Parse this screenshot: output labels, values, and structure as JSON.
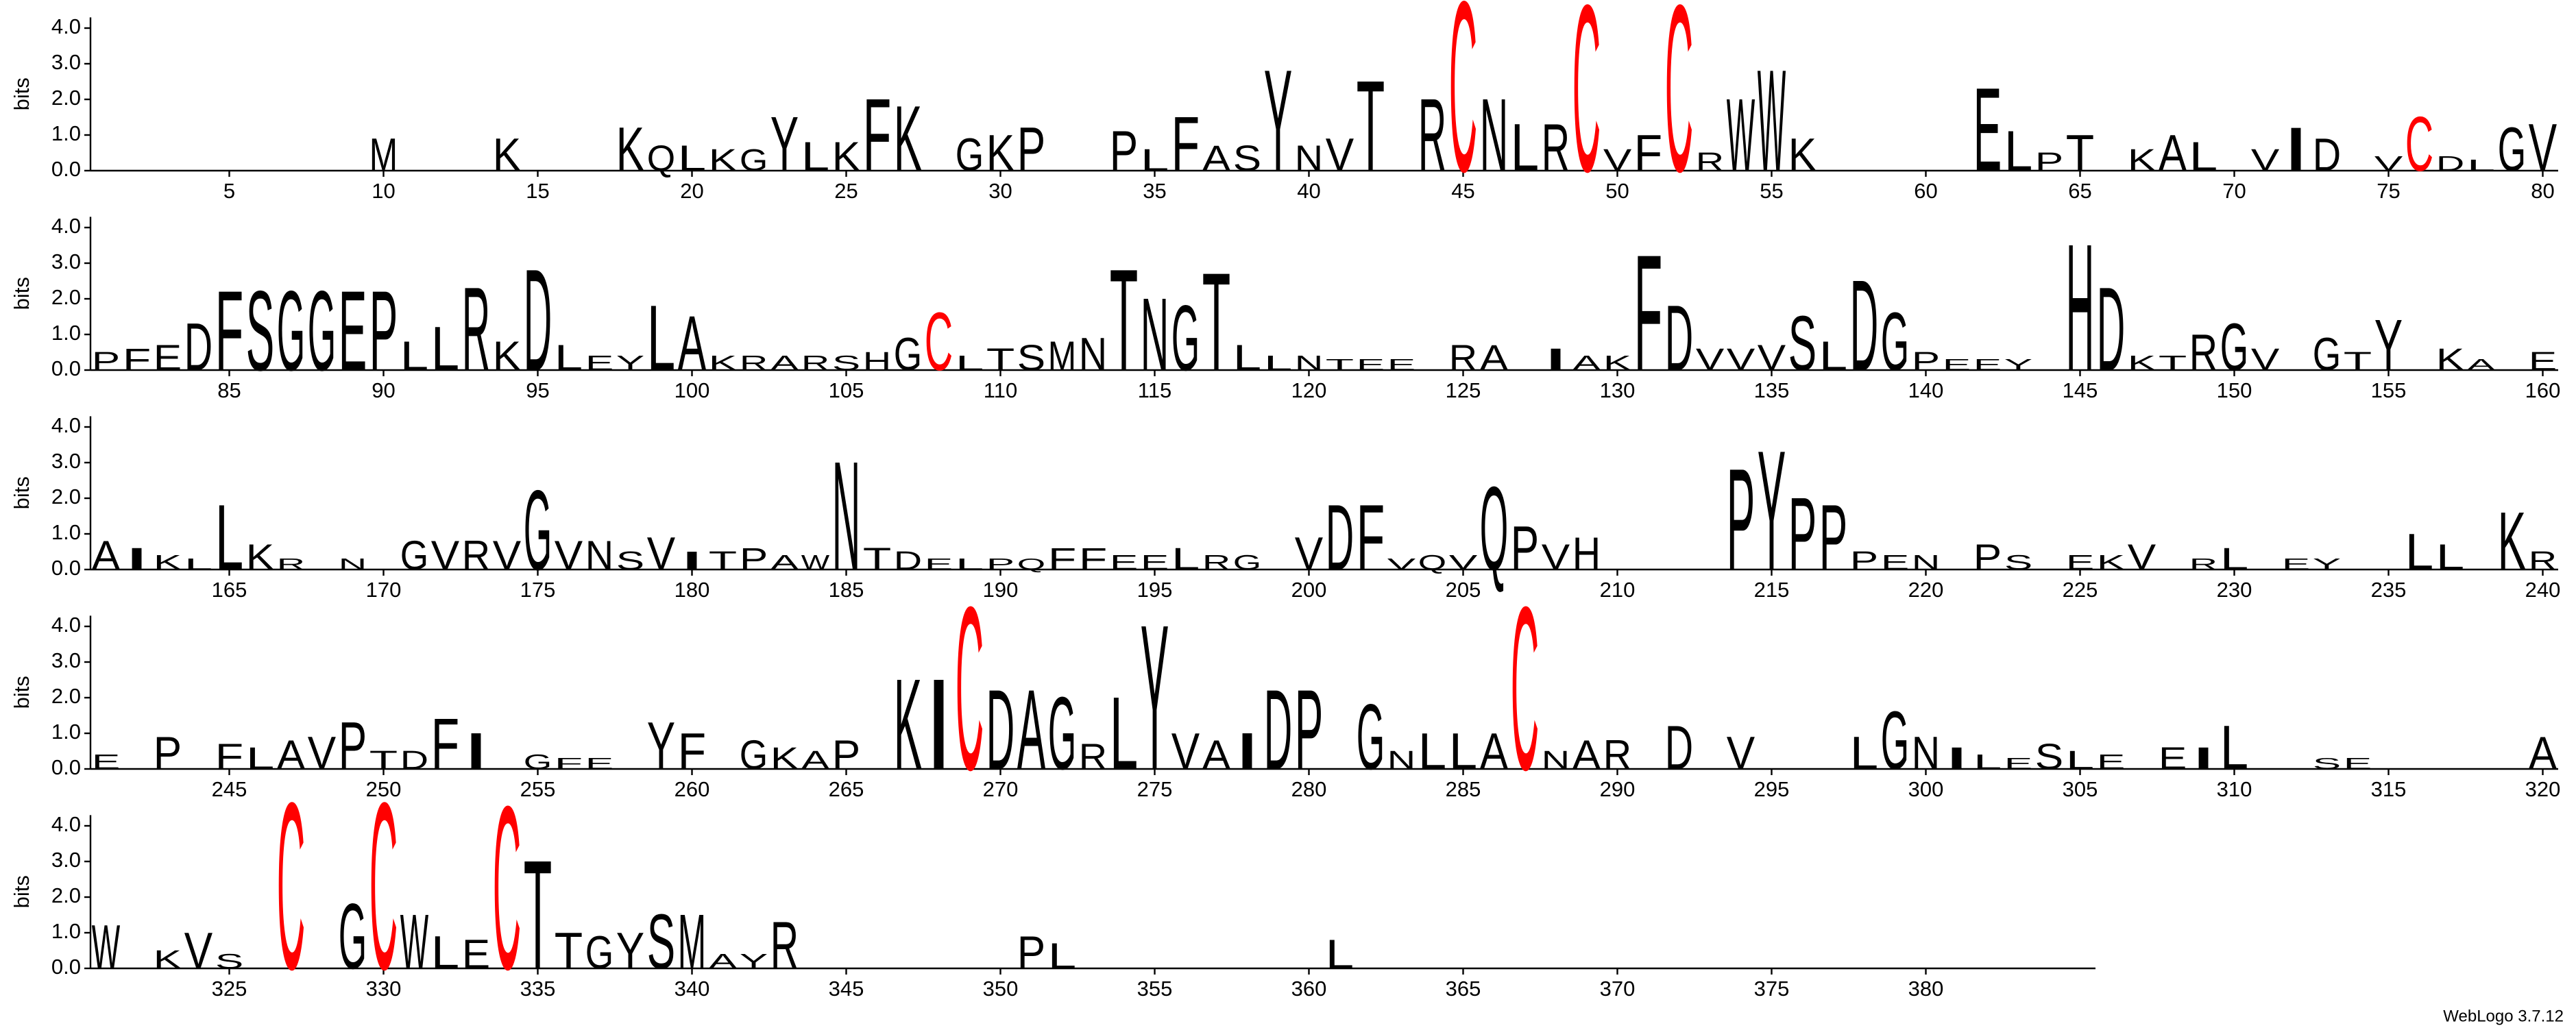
{
  "chart_data": [
    {
      "type": "logo",
      "ylabel": "bits",
      "ylim": [
        0,
        4.3
      ],
      "yticks": [
        {
          "value": 0,
          "label": "0.0"
        },
        {
          "value": 1,
          "label": "1.0"
        },
        {
          "value": 2,
          "label": "2.0"
        },
        {
          "value": 3,
          "label": "3.0"
        },
        {
          "value": 4,
          "label": "4.0"
        }
      ],
      "xlim": [
        0.5,
        80.5
      ],
      "xticks": [
        5,
        10,
        15,
        20,
        25,
        30,
        35,
        40,
        45,
        50,
        55,
        60,
        65,
        70,
        75,
        80
      ],
      "color": "#000000",
      "letter_colors": {
        "C": "#ff0000"
      },
      "x": [
        10,
        14,
        18,
        19,
        20,
        21,
        22,
        23,
        24,
        25,
        26,
        27,
        29,
        30,
        31,
        34,
        35,
        36,
        37,
        38,
        39,
        40,
        41,
        42,
        44,
        45,
        46,
        47,
        48,
        49,
        50,
        51,
        52,
        53,
        54,
        55,
        56,
        62,
        63,
        64,
        65,
        67,
        68,
        69,
        71,
        72,
        73,
        75,
        76,
        77,
        78,
        79,
        80
      ],
      "letters": [
        "M",
        "K",
        "K",
        "Q",
        "L",
        "K",
        "G",
        "Y",
        "L",
        "K",
        "F",
        "K",
        "G",
        "K",
        "P",
        "P",
        "L",
        "F",
        "A",
        "S",
        "Y",
        "N",
        "V",
        "T",
        "R",
        "C",
        "N",
        "L",
        "R",
        "C",
        "V",
        "F",
        "C",
        "R",
        "W",
        "W",
        "K",
        "E",
        "L",
        "P",
        "T",
        "K",
        "A",
        "L",
        "V",
        "I",
        "D",
        "V",
        "C",
        "D",
        "L",
        "G",
        "V"
      ],
      "values": [
        0.9,
        0.9,
        1.2,
        0.7,
        0.7,
        0.6,
        0.6,
        1.5,
        0.8,
        0.8,
        2.0,
        1.8,
        0.9,
        1.0,
        1.2,
        1.1,
        0.6,
        1.5,
        0.7,
        0.7,
        2.8,
        0.7,
        0.9,
        2.5,
        2.0,
        4.7,
        2.0,
        1.3,
        1.3,
        4.6,
        0.6,
        1.0,
        4.6,
        0.5,
        2.0,
        2.8,
        0.9,
        2.3,
        1.1,
        0.5,
        1.0,
        0.6,
        1.0,
        0.8,
        0.6,
        1.2,
        0.9,
        0.4,
        1.5,
        0.4,
        0.3,
        1.2,
        1.3
      ]
    },
    {
      "type": "logo",
      "ylabel": "bits",
      "ylim": [
        0,
        4.3
      ],
      "yticks": [
        {
          "value": 0,
          "label": "0.0"
        },
        {
          "value": 1,
          "label": "1.0"
        },
        {
          "value": 2,
          "label": "2.0"
        },
        {
          "value": 3,
          "label": "3.0"
        },
        {
          "value": 4,
          "label": "4.0"
        }
      ],
      "xlim": [
        80.5,
        160.5
      ],
      "xticks": [
        85,
        90,
        95,
        100,
        105,
        110,
        115,
        120,
        125,
        130,
        135,
        140,
        145,
        150,
        155,
        160
      ],
      "color": "#000000",
      "letter_colors": {
        "C": "#ff0000"
      },
      "x": [
        81,
        82,
        83,
        84,
        85,
        86,
        87,
        88,
        89,
        90,
        91,
        92,
        93,
        94,
        95,
        96,
        97,
        98,
        99,
        100,
        101,
        102,
        103,
        104,
        105,
        106,
        107,
        108,
        109,
        110,
        111,
        112,
        113,
        114,
        115,
        116,
        117,
        118,
        119,
        120,
        121,
        122,
        123,
        125,
        126,
        128,
        129,
        130,
        131,
        132,
        133,
        134,
        135,
        136,
        137,
        138,
        139,
        140,
        141,
        142,
        143,
        145,
        146,
        147,
        148,
        149,
        150,
        151,
        153,
        154,
        155,
        157,
        158,
        160
      ],
      "letters": [
        "P",
        "F",
        "E",
        "D",
        "F",
        "S",
        "G",
        "G",
        "E",
        "P",
        "L",
        "L",
        "R",
        "K",
        "D",
        "L",
        "E",
        "Y",
        "L",
        "A",
        "K",
        "R",
        "A",
        "R",
        "S",
        "H",
        "G",
        "C",
        "L",
        "T",
        "S",
        "M",
        "N",
        "T",
        "N",
        "G",
        "T",
        "L",
        "L",
        "N",
        "T",
        "E",
        "E",
        "R",
        "A",
        "I",
        "A",
        "K",
        "F",
        "D",
        "V",
        "V",
        "V",
        "S",
        "L",
        "D",
        "G",
        "P",
        "E",
        "E",
        "Y",
        "H",
        "D",
        "K",
        "T",
        "R",
        "G",
        "V",
        "G",
        "T",
        "Y",
        "K",
        "A",
        "E"
      ],
      "values": [
        0.5,
        0.6,
        0.7,
        1.3,
        2.2,
        2.2,
        2.2,
        2.2,
        2.2,
        2.2,
        0.8,
        1.2,
        2.3,
        0.8,
        2.8,
        0.7,
        0.4,
        0.4,
        1.8,
        1.5,
        0.4,
        0.4,
        0.4,
        0.4,
        0.4,
        0.5,
        0.9,
        1.6,
        0.4,
        0.6,
        0.7,
        0.8,
        0.9,
        2.8,
        2.0,
        1.8,
        2.7,
        0.7,
        0.4,
        0.4,
        0.3,
        0.3,
        0.3,
        0.7,
        0.7,
        0.6,
        0.4,
        0.4,
        3.2,
        1.8,
        0.6,
        0.6,
        0.7,
        1.5,
        0.8,
        2.5,
        1.6,
        0.5,
        0.3,
        0.3,
        0.3,
        3.5,
        2.3,
        0.4,
        0.4,
        1.0,
        1.3,
        0.6,
        0.9,
        0.5,
        1.4,
        0.6,
        0.3,
        0.5
      ]
    },
    {
      "type": "logo",
      "ylabel": "bits",
      "ylim": [
        0,
        4.3
      ],
      "yticks": [
        {
          "value": 0,
          "label": "0.0"
        },
        {
          "value": 1,
          "label": "1.0"
        },
        {
          "value": 2,
          "label": "2.0"
        },
        {
          "value": 3,
          "label": "3.0"
        },
        {
          "value": 4,
          "label": "4.0"
        }
      ],
      "xlim": [
        160.5,
        240.5
      ],
      "xticks": [
        165,
        170,
        175,
        180,
        185,
        190,
        195,
        200,
        205,
        210,
        215,
        220,
        225,
        230,
        235,
        240
      ],
      "color": "#000000",
      "letter_colors": {
        "C": "#ff0000"
      },
      "x": [
        161,
        162,
        163,
        164,
        165,
        166,
        167,
        169,
        171,
        172,
        173,
        174,
        175,
        176,
        177,
        178,
        179,
        180,
        181,
        182,
        183,
        184,
        185,
        186,
        187,
        188,
        189,
        190,
        191,
        192,
        193,
        194,
        195,
        196,
        197,
        198,
        200,
        201,
        202,
        203,
        204,
        205,
        206,
        207,
        208,
        209,
        214,
        215,
        216,
        217,
        218,
        219,
        220,
        222,
        223,
        225,
        226,
        227,
        229,
        230,
        232,
        233,
        236,
        237,
        239,
        240
      ],
      "letters": [
        "A",
        "I",
        "K",
        "L",
        "L",
        "K",
        "R",
        "N",
        "G",
        "V",
        "R",
        "V",
        "G",
        "V",
        "N",
        "S",
        "V",
        "I",
        "T",
        "P",
        "A",
        "W",
        "N",
        "T",
        "D",
        "E",
        "L",
        "P",
        "Q",
        "F",
        "F",
        "E",
        "E",
        "L",
        "R",
        "G",
        "V",
        "D",
        "F",
        "V",
        "Q",
        "V",
        "Q",
        "P",
        "V",
        "H",
        "P",
        "Y",
        "P",
        "P",
        "P",
        "E",
        "N",
        "P",
        "S",
        "E",
        "K",
        "V",
        "R",
        "L",
        "E",
        "Y",
        "L",
        "L",
        "K",
        "R"
      ],
      "values": [
        0.8,
        0.6,
        0.4,
        0.3,
        1.8,
        0.7,
        0.3,
        0.3,
        0.8,
        0.8,
        0.8,
        0.8,
        2.2,
        0.8,
        0.8,
        0.5,
        0.9,
        0.5,
        0.5,
        0.6,
        0.4,
        0.4,
        3.0,
        0.6,
        0.5,
        0.3,
        0.3,
        0.3,
        0.3,
        0.6,
        0.6,
        0.4,
        0.4,
        0.6,
        0.4,
        0.4,
        0.9,
        1.8,
        1.8,
        0.3,
        0.4,
        0.4,
        2.3,
        1.2,
        0.7,
        0.9,
        2.8,
        3.3,
        2.0,
        1.8,
        0.5,
        0.4,
        0.4,
        0.7,
        0.4,
        0.4,
        0.4,
        0.7,
        0.3,
        0.6,
        0.3,
        0.3,
        1.0,
        0.7,
        1.6,
        0.5
      ]
    },
    {
      "type": "logo",
      "ylabel": "bits",
      "ylim": [
        0,
        4.3
      ],
      "yticks": [
        {
          "value": 0,
          "label": "0.0"
        },
        {
          "value": 1,
          "label": "1.0"
        },
        {
          "value": 2,
          "label": "2.0"
        },
        {
          "value": 3,
          "label": "3.0"
        },
        {
          "value": 4,
          "label": "4.0"
        }
      ],
      "xlim": [
        240.5,
        320.5
      ],
      "xticks": [
        245,
        250,
        255,
        260,
        265,
        270,
        275,
        280,
        285,
        290,
        295,
        300,
        305,
        310,
        315,
        320
      ],
      "color": "#000000",
      "letter_colors": {
        "C": "#ff0000"
      },
      "x": [
        241,
        243,
        245,
        246,
        247,
        248,
        249,
        250,
        251,
        252,
        253,
        255,
        256,
        257,
        259,
        260,
        262,
        263,
        264,
        265,
        267,
        268,
        269,
        270,
        271,
        272,
        273,
        274,
        275,
        276,
        277,
        278,
        279,
        280,
        282,
        283,
        284,
        285,
        286,
        287,
        288,
        289,
        290,
        292,
        294,
        298,
        299,
        300,
        301,
        302,
        303,
        304,
        305,
        306,
        308,
        309,
        310,
        313,
        314,
        320
      ],
      "letters": [
        "E",
        "P",
        "F",
        "L",
        "A",
        "V",
        "P",
        "T",
        "D",
        "F",
        "I",
        "G",
        "F",
        "E",
        "Y",
        "F",
        "G",
        "K",
        "A",
        "P",
        "K",
        "I",
        "C",
        "D",
        "A",
        "G",
        "R",
        "L",
        "Y",
        "V",
        "A",
        "I",
        "D",
        "P",
        "G",
        "N",
        "L",
        "L",
        "A",
        "C",
        "N",
        "A",
        "R",
        "D",
        "V",
        "L",
        "G",
        "N",
        "I",
        "L",
        "E",
        "S",
        "L",
        "E",
        "E",
        "I",
        "L",
        "S",
        "E",
        "A"
      ],
      "values": [
        0.4,
        0.9,
        0.7,
        0.6,
        0.8,
        0.9,
        1.3,
        0.5,
        0.5,
        1.4,
        1.0,
        0.4,
        0.3,
        0.3,
        1.3,
        1.0,
        0.8,
        0.6,
        0.5,
        0.8,
        2.5,
        2.5,
        4.5,
        2.2,
        2.2,
        2.0,
        0.7,
        2.0,
        4.0,
        1.0,
        0.8,
        1.0,
        2.2,
        2.2,
        1.8,
        0.5,
        1.0,
        1.0,
        1.0,
        4.5,
        0.5,
        0.8,
        0.8,
        1.2,
        0.9,
        0.9,
        1.6,
        0.9,
        0.6,
        0.4,
        0.3,
        0.7,
        0.5,
        0.4,
        0.6,
        0.6,
        1.2,
        0.3,
        0.3,
        0.9
      ]
    },
    {
      "type": "logo",
      "ylabel": "bits",
      "ylim": [
        0,
        4.3
      ],
      "yticks": [
        {
          "value": 0,
          "label": "0.0"
        },
        {
          "value": 1,
          "label": "1.0"
        },
        {
          "value": 2,
          "label": "2.0"
        },
        {
          "value": 3,
          "label": "3.0"
        },
        {
          "value": 4,
          "label": "4.0"
        }
      ],
      "xlim": [
        320.5,
        385.5
      ],
      "xticks": [
        325,
        330,
        335,
        340,
        345,
        350,
        355,
        360,
        365,
        370,
        375,
        380
      ],
      "color": "#000000",
      "letter_colors": {
        "C": "#ff0000"
      },
      "x": [
        321,
        323,
        324,
        325,
        327,
        329,
        330,
        331,
        332,
        333,
        334,
        335,
        336,
        337,
        338,
        339,
        340,
        341,
        342,
        343,
        351,
        352,
        361
      ],
      "letters": [
        "W",
        "K",
        "V",
        "S",
        "C",
        "G",
        "C",
        "W",
        "L",
        "E",
        "C",
        "T",
        "T",
        "G",
        "Y",
        "S",
        "M",
        "A",
        "Y",
        "R",
        "P",
        "L",
        "L"
      ],
      "values": [
        1.2,
        0.5,
        1.0,
        0.4,
        4.6,
        1.8,
        4.6,
        1.5,
        0.9,
        0.8,
        4.5,
        3.0,
        1.0,
        0.9,
        1.0,
        1.5,
        1.5,
        0.4,
        0.4,
        1.3,
        0.9,
        0.7,
        0.8
      ]
    }
  ],
  "footer": "WebLogo 3.7.12"
}
